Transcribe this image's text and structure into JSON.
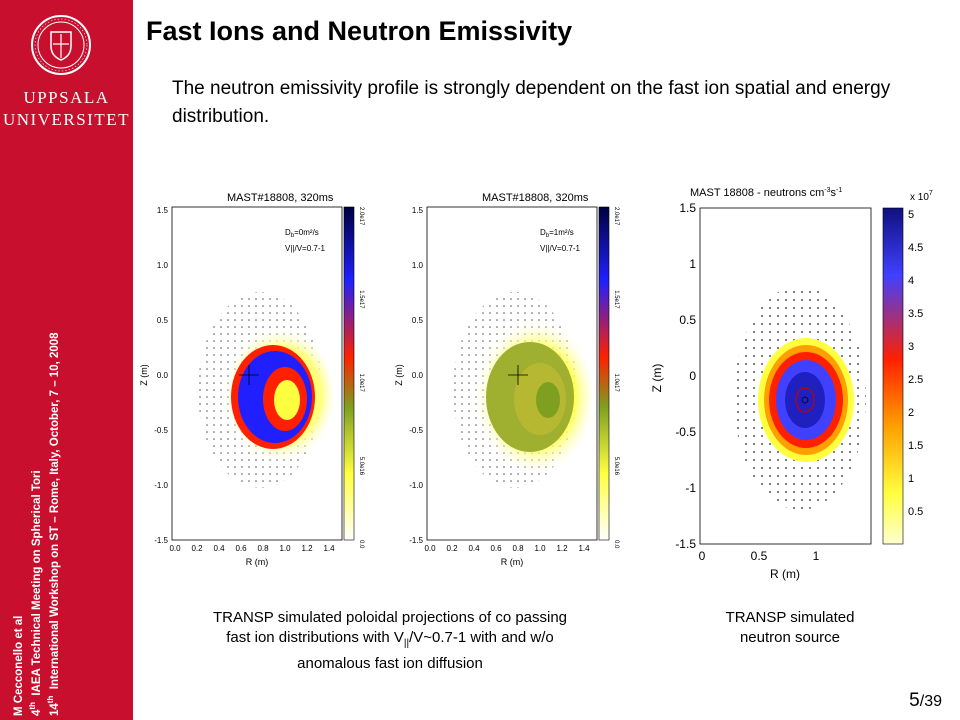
{
  "sidebar": {
    "university_line1": "UPPSALA",
    "university_line2": "UNIVERSITET",
    "author": "M Cecconello et al",
    "meeting1_num": "4",
    "meeting1_sup": "th",
    "meeting1_text": "IAEA Technical Meeting on Spherical Tori",
    "meeting2_num": "14",
    "meeting2_sup": "th",
    "meeting2_text": "International Workshop on ST – Rome, Italy, October, 7 – 10, 2008"
  },
  "slide": {
    "title": "Fast Ions and Neutron Emissivity",
    "intro": "The neutron emissivity profile is strongly dependent on the fast ion spatial and energy distribution.",
    "caption_left_line1": "TRANSP simulated poloidal projections of co passing",
    "caption_left_line2a": "fast ion distributions with V",
    "caption_left_sub": "||",
    "caption_left_line2b": "/V~0.7-1 with and w/o",
    "caption_left_line3": "anomalous fast ion diffusion",
    "caption_right_line1": "TRANSP simulated",
    "caption_right_line2": "neutron source",
    "page_current": "5",
    "page_total": "/39"
  },
  "plots": {
    "p1": {
      "title": "MAST#18808, 320ms",
      "db_label": "D",
      "db_sub": "b",
      "db_value": "=0m²/s",
      "v_label": "V||/V=0.7-1",
      "xlabel": "R (m)",
      "ylabel": "Z (m)",
      "xticks": [
        "0.0",
        "0.2",
        "0.4",
        "0.6",
        "0.8",
        "1.0",
        "1.2",
        "1.4"
      ],
      "yticks": [
        "1.5",
        "1.0",
        "0.5",
        "0.0",
        "-0.5",
        "-1.0",
        "-1.5"
      ],
      "cbar_ticks": [
        "2.0e17",
        "1.5e17",
        "1.0e17",
        "5.0e16",
        "0.0"
      ]
    },
    "p2": {
      "title": "MAST#18808, 320ms",
      "db_label": "D",
      "db_sub": "b",
      "db_value": "=1m²/s",
      "v_label": "V||/V=0.7-1",
      "xlabel": "R (m)",
      "ylabel": "Z (m)",
      "xticks": [
        "0.0",
        "0.2",
        "0.4",
        "0.6",
        "0.8",
        "1.0",
        "1.2",
        "1.4"
      ],
      "yticks": [
        "1.5",
        "1.0",
        "0.5",
        "0.0",
        "-0.5",
        "-1.0",
        "-1.5"
      ],
      "cbar_ticks": [
        "2.0e17",
        "1.5e17",
        "1.0e17",
        "5.0e16",
        "0.0"
      ]
    },
    "p3": {
      "title_main": "MAST 18808 - neutrons cm",
      "title_sup1": "-3",
      "title_mid": "s",
      "title_sup2": "-1",
      "xlabel": "R (m)",
      "ylabel": "Z (m)",
      "xticks": [
        "0",
        "0.5",
        "1"
      ],
      "yticks": [
        "1.5",
        "1",
        "0.5",
        "0",
        "-0.5",
        "-1",
        "-1.5"
      ],
      "cbar_scale_base": "x 10",
      "cbar_scale_exp": "7",
      "cbar_ticks": [
        "5",
        "4.5",
        "4",
        "3.5",
        "3",
        "2.5",
        "2",
        "1.5",
        "1",
        "0.5"
      ]
    }
  },
  "colors": {
    "sidebar": "#c8102e",
    "colormap": [
      "#ffffff",
      "#ffff40",
      "#7f9f20",
      "#ff2000",
      "#2020ff",
      "#000040"
    ]
  }
}
